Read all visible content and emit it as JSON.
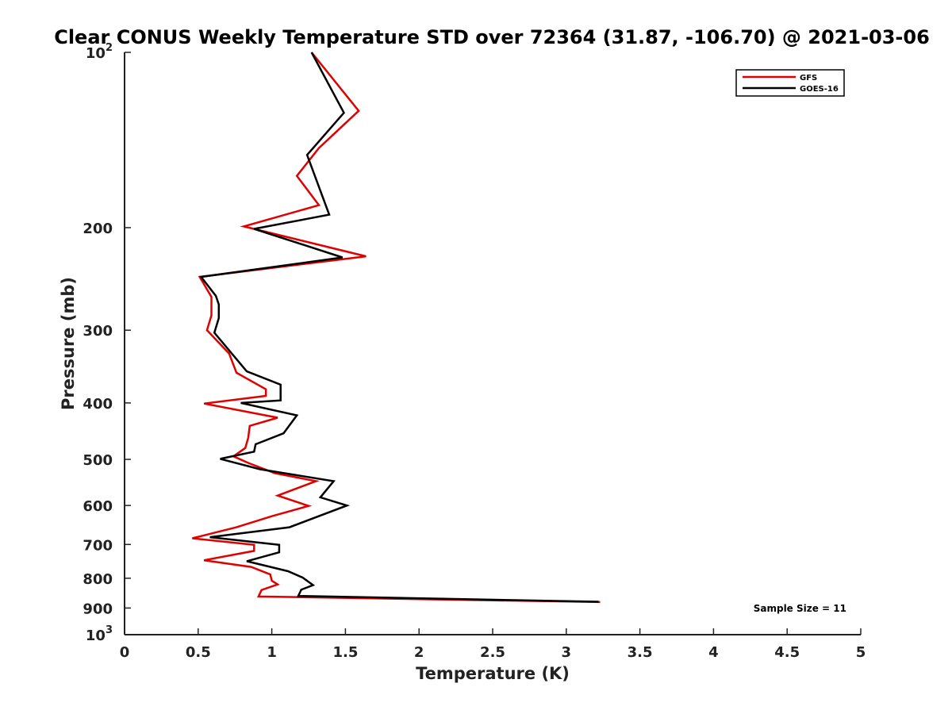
{
  "chart_data": {
    "type": "line",
    "title": "Clear CONUS Weekly Temperature STD over 72364 (31.87, -106.70) @ 2021-03-06",
    "xlabel": "Temperature (K)",
    "ylabel": "Pressure (mb)",
    "xlim": [
      0,
      5
    ],
    "ylim": [
      100,
      1000
    ],
    "y_scale": "log",
    "y_reversed": true,
    "grid": false,
    "legend_position": "top-right",
    "x_ticks": [
      0,
      0.5,
      1,
      1.5,
      2,
      2.5,
      3,
      3.5,
      4,
      4.5,
      5
    ],
    "x_tick_labels": [
      "0",
      "0.5",
      "1",
      "1.5",
      "2",
      "2.5",
      "3",
      "3.5",
      "4",
      "4.5",
      "5"
    ],
    "y_ticks": [
      {
        "value": 100,
        "label": "10",
        "sup": "2"
      },
      {
        "value": 200,
        "label": "200",
        "sup": ""
      },
      {
        "value": 300,
        "label": "300",
        "sup": ""
      },
      {
        "value": 400,
        "label": "400",
        "sup": ""
      },
      {
        "value": 500,
        "label": "500",
        "sup": ""
      },
      {
        "value": 600,
        "label": "600",
        "sup": ""
      },
      {
        "value": 700,
        "label": "700",
        "sup": ""
      },
      {
        "value": 800,
        "label": "800",
        "sup": ""
      },
      {
        "value": 900,
        "label": "900",
        "sup": ""
      },
      {
        "value": 1000,
        "label": "10",
        "sup": "3"
      }
    ],
    "series": [
      {
        "name": "GFS",
        "color": "#e00000",
        "points": [
          [
            1.27,
            100
          ],
          [
            1.59,
            126
          ],
          [
            1.32,
            146
          ],
          [
            1.17,
            163
          ],
          [
            1.32,
            183
          ],
          [
            0.81,
            199
          ],
          [
            1.64,
            224
          ],
          [
            0.51,
            243
          ],
          [
            0.59,
            263
          ],
          [
            0.59,
            283
          ],
          [
            0.56,
            300
          ],
          [
            0.71,
            329
          ],
          [
            0.76,
            355
          ],
          [
            0.96,
            379
          ],
          [
            0.96,
            389
          ],
          [
            0.54,
            401
          ],
          [
            1.04,
            424
          ],
          [
            0.85,
            438
          ],
          [
            0.84,
            459
          ],
          [
            0.82,
            478
          ],
          [
            0.74,
            494
          ],
          [
            0.84,
            507
          ],
          [
            1.02,
            528
          ],
          [
            1.3,
            545
          ],
          [
            1.04,
            577
          ],
          [
            1.25,
            601
          ],
          [
            1.0,
            626
          ],
          [
            0.76,
            654
          ],
          [
            0.46,
            683
          ],
          [
            0.88,
            701
          ],
          [
            0.88,
            718
          ],
          [
            0.54,
            745
          ],
          [
            0.86,
            765
          ],
          [
            0.99,
            788
          ],
          [
            1.0,
            808
          ],
          [
            1.04,
            820
          ],
          [
            0.93,
            838
          ],
          [
            0.91,
            860
          ],
          [
            3.23,
            879
          ]
        ]
      },
      {
        "name": "GOES-16",
        "color": "#000000",
        "points": [
          [
            1.27,
            100
          ],
          [
            1.49,
            127
          ],
          [
            1.24,
            150
          ],
          [
            1.39,
            190
          ],
          [
            0.88,
            201
          ],
          [
            1.48,
            225
          ],
          [
            0.52,
            243
          ],
          [
            0.62,
            262
          ],
          [
            0.64,
            271
          ],
          [
            0.64,
            286
          ],
          [
            0.61,
            303
          ],
          [
            0.83,
            353
          ],
          [
            1.06,
            372
          ],
          [
            1.06,
            396
          ],
          [
            0.79,
            400
          ],
          [
            1.17,
            420
          ],
          [
            1.08,
            451
          ],
          [
            0.89,
            471
          ],
          [
            0.88,
            485
          ],
          [
            0.65,
            499
          ],
          [
            0.92,
            520
          ],
          [
            1.42,
            545
          ],
          [
            1.33,
            581
          ],
          [
            1.51,
            600
          ],
          [
            1.12,
            654
          ],
          [
            0.58,
            680
          ],
          [
            1.05,
            701
          ],
          [
            1.05,
            722
          ],
          [
            0.83,
            748
          ],
          [
            1.11,
            778
          ],
          [
            1.21,
            798
          ],
          [
            1.28,
            822
          ],
          [
            1.2,
            837
          ],
          [
            1.18,
            858
          ],
          [
            3.22,
            878
          ]
        ]
      }
    ],
    "annotation": "Sample Size = 11"
  }
}
